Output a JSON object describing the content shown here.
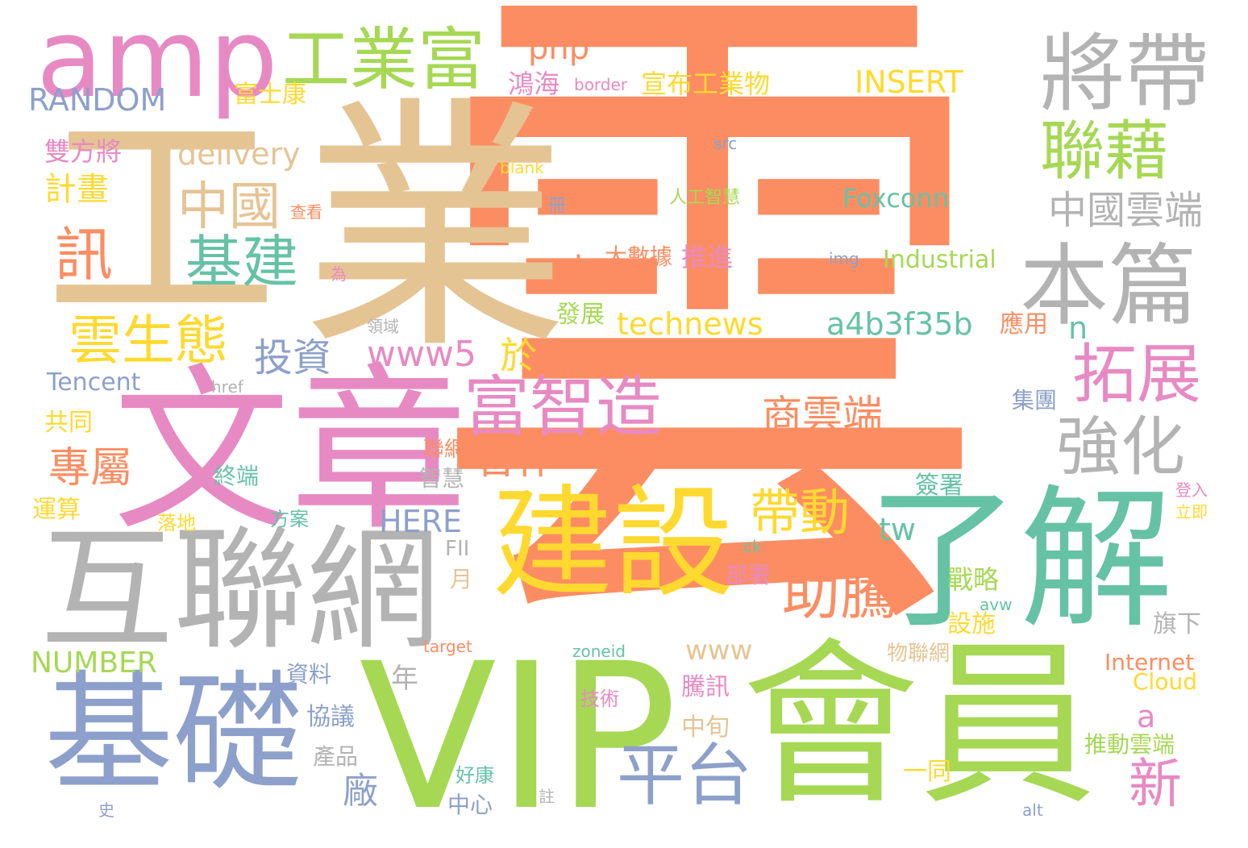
{
  "palette": {
    "orange": "#fc8d62",
    "tan": "#e5c494",
    "pink": "#e78ac3",
    "gray": "#b3b3b3",
    "green": "#a6d854",
    "teal": "#66c2a5",
    "yellow": "#ffd92f",
    "blue": "#8da0cb"
  },
  "words": [
    {
      "text": "雲",
      "color": "orange"
    },
    {
      "text": "業",
      "color": "tan"
    },
    {
      "text": "工",
      "color": "tan"
    },
    {
      "text": "文章",
      "color": "pink"
    },
    {
      "text": "VIP",
      "color": "green"
    },
    {
      "text": "會員",
      "color": "green"
    },
    {
      "text": "互聯網",
      "color": "gray"
    },
    {
      "text": "了解",
      "color": "teal"
    },
    {
      "text": "建設",
      "color": "yellow"
    },
    {
      "text": "基礎",
      "color": "blue"
    },
    {
      "text": "amp",
      "color": "pink"
    },
    {
      "text": "將帶",
      "color": "gray"
    },
    {
      "text": "本篇",
      "color": "gray"
    },
    {
      "text": "工業富",
      "color": "green"
    },
    {
      "text": "平台",
      "color": "blue"
    },
    {
      "text": "拓展",
      "color": "pink"
    },
    {
      "text": "強化",
      "color": "gray"
    },
    {
      "text": "富智造",
      "color": "pink"
    },
    {
      "text": "助騰",
      "color": "orange"
    },
    {
      "text": "聯藉",
      "color": "green"
    },
    {
      "text": "中國",
      "color": "tan"
    },
    {
      "text": "基建",
      "color": "teal"
    },
    {
      "text": "雲生態",
      "color": "yellow"
    },
    {
      "text": "帶動",
      "color": "yellow"
    },
    {
      "text": "訊",
      "color": "orange"
    },
    {
      "text": "中國雲端",
      "color": "gray"
    },
    {
      "text": "商雲端",
      "color": "orange"
    },
    {
      "text": "專屬",
      "color": "orange"
    },
    {
      "text": "新",
      "color": "pink"
    },
    {
      "text": "合作",
      "color": "orange"
    },
    {
      "text": "投資",
      "color": "blue"
    },
    {
      "text": "technews",
      "color": "yellow"
    },
    {
      "text": "a4b3f35b",
      "color": "teal"
    },
    {
      "text": "www5",
      "color": "pink"
    },
    {
      "text": "於",
      "color": "yellow"
    },
    {
      "text": "計畫",
      "color": "yellow"
    },
    {
      "text": "delivery",
      "color": "tan"
    },
    {
      "text": "RANDOM",
      "color": "blue"
    },
    {
      "text": "INSERT",
      "color": "yellow"
    },
    {
      "text": "Foxconn",
      "color": "teal"
    },
    {
      "text": "Industrial",
      "color": "green"
    },
    {
      "text": "NUMBER",
      "color": "green"
    },
    {
      "text": "HERE",
      "color": "blue"
    },
    {
      "text": "Tencent",
      "color": "blue"
    },
    {
      "text": "www",
      "color": "tan"
    },
    {
      "text": "tw",
      "color": "teal"
    },
    {
      "text": "cb",
      "color": "orange"
    },
    {
      "text": "php",
      "color": "orange"
    },
    {
      "text": "n",
      "color": "teal"
    },
    {
      "text": "a",
      "color": "pink"
    },
    {
      "text": "廠",
      "color": "blue"
    },
    {
      "text": "Internet",
      "color": "orange"
    },
    {
      "text": "Cloud",
      "color": "yellow"
    },
    {
      "text": "宣布工業物",
      "color": "yellow"
    },
    {
      "text": "鴻海",
      "color": "pink"
    },
    {
      "text": "富士康",
      "color": "yellow"
    },
    {
      "text": "雙方將",
      "color": "pink"
    },
    {
      "text": "大數據",
      "color": "orange"
    },
    {
      "text": "推進",
      "color": "pink"
    },
    {
      "text": "發展",
      "color": "green"
    },
    {
      "text": "人工智慧",
      "color": "green"
    },
    {
      "text": "共同",
      "color": "yellow"
    },
    {
      "text": "運算",
      "color": "yellow"
    },
    {
      "text": "終端",
      "color": "teal"
    },
    {
      "text": "落地",
      "color": "yellow"
    },
    {
      "text": "方案",
      "color": "teal"
    },
    {
      "text": "聯網",
      "color": "orange"
    },
    {
      "text": "智慧",
      "color": "gray"
    },
    {
      "text": "應用",
      "color": "orange"
    },
    {
      "text": "集團",
      "color": "blue"
    },
    {
      "text": "簽署",
      "color": "teal"
    },
    {
      "text": "戰略",
      "color": "green"
    },
    {
      "text": "設施",
      "color": "yellow"
    },
    {
      "text": "部署",
      "color": "pink"
    },
    {
      "text": "物聯網",
      "color": "tan"
    },
    {
      "text": "旗下",
      "color": "gray"
    },
    {
      "text": "騰訊",
      "color": "pink"
    },
    {
      "text": "資料",
      "color": "blue"
    },
    {
      "text": "協議",
      "color": "blue"
    },
    {
      "text": "產品",
      "color": "gray"
    },
    {
      "text": "年",
      "color": "gray"
    },
    {
      "text": "技術",
      "color": "pink"
    },
    {
      "text": "中旬",
      "color": "tan"
    },
    {
      "text": "推動雲端",
      "color": "green"
    },
    {
      "text": "一同",
      "color": "yellow"
    },
    {
      "text": "中心",
      "color": "blue"
    },
    {
      "text": "好康",
      "color": "teal"
    },
    {
      "text": "月",
      "color": "tan"
    },
    {
      "text": "FII",
      "color": "gray"
    },
    {
      "text": "border",
      "color": "pink"
    },
    {
      "text": "訂閱",
      "color": "orange"
    },
    {
      "text": "src",
      "color": "blue"
    },
    {
      "text": "blank",
      "color": "yellow"
    },
    {
      "text": "冊",
      "color": "blue"
    },
    {
      "text": "查看",
      "color": "orange"
    },
    {
      "text": "img",
      "color": "blue"
    },
    {
      "text": "為",
      "color": "pink"
    },
    {
      "text": "領域",
      "color": "gray"
    },
    {
      "text": "href",
      "color": "gray"
    },
    {
      "text": "登入",
      "color": "pink"
    },
    {
      "text": "立即",
      "color": "yellow"
    },
    {
      "text": "ck",
      "color": "teal"
    },
    {
      "text": "avw",
      "color": "teal"
    },
    {
      "text": "target",
      "color": "orange"
    },
    {
      "text": "zoneid",
      "color": "teal"
    },
    {
      "text": "alt",
      "color": "blue"
    },
    {
      "text": "註",
      "color": "gray"
    },
    {
      "text": "史",
      "color": "blue"
    }
  ]
}
